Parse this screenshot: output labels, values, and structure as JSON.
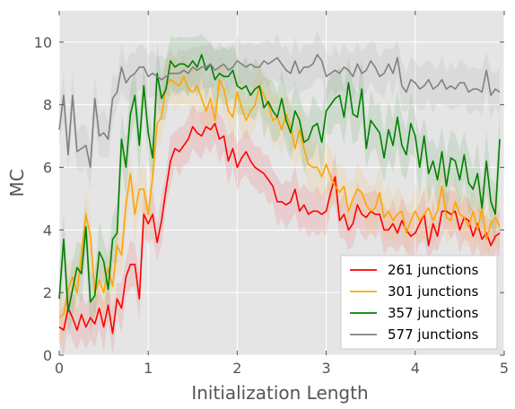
{
  "chart_data": {
    "type": "line",
    "xlabel": "Initialization Length",
    "ylabel": "MC",
    "xlim": [
      0,
      5
    ],
    "ylim": [
      0,
      11
    ],
    "xticks": [
      0,
      1,
      2,
      3,
      4,
      5
    ],
    "yticks": [
      0,
      2,
      4,
      6,
      8,
      10
    ],
    "grid": true,
    "legend_position": "bottom-right",
    "x": [
      0.0,
      0.05,
      0.1,
      0.15,
      0.2,
      0.25,
      0.3,
      0.35,
      0.4,
      0.45,
      0.5,
      0.55,
      0.6,
      0.65,
      0.7,
      0.75,
      0.8,
      0.85,
      0.9,
      0.95,
      1.0,
      1.05,
      1.1,
      1.15,
      1.2,
      1.25,
      1.3,
      1.35,
      1.4,
      1.45,
      1.5,
      1.55,
      1.6,
      1.65,
      1.7,
      1.75,
      1.8,
      1.85,
      1.9,
      1.95,
      2.0,
      2.05,
      2.1,
      2.15,
      2.2,
      2.25,
      2.3,
      2.35,
      2.4,
      2.45,
      2.5,
      2.55,
      2.6,
      2.65,
      2.7,
      2.75,
      2.8,
      2.85,
      2.9,
      2.95,
      3.0,
      3.05,
      3.1,
      3.15,
      3.2,
      3.25,
      3.3,
      3.35,
      3.4,
      3.45,
      3.5,
      3.55,
      3.6,
      3.65,
      3.7,
      3.75,
      3.8,
      3.85,
      3.9,
      3.95,
      4.0,
      4.05,
      4.1,
      4.15,
      4.2,
      4.25,
      4.3,
      4.35,
      4.4,
      4.45,
      4.5,
      4.55,
      4.6,
      4.65,
      4.7,
      4.75,
      4.8,
      4.85,
      4.9,
      4.95
    ],
    "series": [
      {
        "name": "261 junctions",
        "color": "#ff0000",
        "values": [
          0.9,
          0.8,
          1.5,
          1.2,
          0.8,
          1.3,
          0.9,
          1.2,
          1.0,
          1.5,
          0.9,
          1.6,
          0.7,
          1.8,
          1.5,
          2.5,
          2.9,
          2.9,
          1.8,
          4.5,
          4.2,
          4.5,
          3.6,
          4.3,
          5.3,
          6.2,
          6.6,
          6.5,
          6.7,
          6.9,
          7.3,
          7.1,
          7.0,
          7.3,
          7.2,
          7.4,
          6.9,
          7.0,
          6.2,
          6.6,
          6.0,
          6.3,
          6.5,
          6.2,
          6.0,
          5.9,
          5.8,
          5.6,
          5.4,
          4.9,
          4.9,
          4.8,
          4.9,
          5.3,
          4.6,
          4.8,
          4.5,
          4.6,
          4.6,
          4.5,
          4.6,
          5.2,
          5.7,
          4.3,
          4.5,
          4.0,
          4.2,
          4.8,
          4.5,
          4.4,
          4.6,
          4.5,
          4.5,
          4.0,
          4.0,
          4.2,
          3.9,
          4.3,
          4.0,
          3.8,
          3.9,
          4.2,
          4.5,
          3.5,
          4.2,
          3.8,
          4.6,
          4.6,
          4.5,
          4.6,
          4.0,
          4.4,
          4.3,
          3.8,
          4.2,
          3.7,
          3.9,
          3.5,
          3.8,
          3.9
        ]
      },
      {
        "name": "301 junctions",
        "color": "#ffa500",
        "values": [
          1.2,
          1.3,
          2.1,
          2.5,
          2.0,
          3.2,
          4.5,
          3.8,
          2.0,
          2.4,
          2.0,
          2.8,
          2.2,
          3.5,
          3.2,
          4.8,
          5.8,
          4.5,
          5.3,
          5.3,
          4.5,
          5.7,
          7.4,
          7.6,
          8.6,
          8.8,
          8.7,
          8.6,
          8.9,
          8.5,
          8.4,
          8.6,
          8.2,
          7.8,
          8.2,
          7.5,
          8.8,
          8.5,
          7.8,
          7.6,
          8.4,
          7.9,
          7.5,
          7.8,
          8.0,
          8.6,
          8.3,
          8.0,
          7.5,
          7.6,
          7.2,
          7.7,
          7.3,
          6.6,
          7.2,
          6.6,
          6.1,
          6.0,
          6.0,
          5.7,
          6.1,
          5.7,
          5.4,
          5.2,
          5.4,
          4.6,
          5.0,
          5.3,
          5.2,
          4.8,
          4.6,
          4.7,
          5.2,
          4.4,
          4.6,
          4.3,
          4.5,
          4.6,
          3.9,
          4.3,
          4.6,
          4.3,
          4.5,
          4.7,
          4.3,
          4.6,
          5.4,
          4.4,
          4.3,
          4.9,
          4.5,
          4.4,
          4.1,
          4.6,
          4.0,
          4.7,
          3.7,
          4.2,
          4.4,
          4.1
        ]
      },
      {
        "name": "357 junctions",
        "color": "#008000",
        "values": [
          1.8,
          3.7,
          1.4,
          2.1,
          2.8,
          2.6,
          4.1,
          1.7,
          1.9,
          3.3,
          3.0,
          2.1,
          3.7,
          3.9,
          6.9,
          6.0,
          7.7,
          8.3,
          6.7,
          8.6,
          7.1,
          6.3,
          9.0,
          8.2,
          8.5,
          9.4,
          9.2,
          9.3,
          9.3,
          9.2,
          9.4,
          9.2,
          9.6,
          9.1,
          9.3,
          8.8,
          9.0,
          8.9,
          8.9,
          9.1,
          8.6,
          8.5,
          8.6,
          8.3,
          8.5,
          8.6,
          7.9,
          8.1,
          7.8,
          7.6,
          8.2,
          7.5,
          7.1,
          7.8,
          7.5,
          6.8,
          6.9,
          7.3,
          7.4,
          6.8,
          7.8,
          8.0,
          8.2,
          8.3,
          7.6,
          8.7,
          7.7,
          7.6,
          8.5,
          6.6,
          7.5,
          7.3,
          7.1,
          6.3,
          7.2,
          6.7,
          7.6,
          6.7,
          6.4,
          7.4,
          7.0,
          6.0,
          7.0,
          5.8,
          6.2,
          5.6,
          6.5,
          5.4,
          6.3,
          6.2,
          5.6,
          6.4,
          5.5,
          5.3,
          5.8,
          4.7,
          6.2,
          4.9,
          4.5,
          6.9
        ]
      },
      {
        "name": "577 junctions",
        "color": "#808080",
        "values": [
          7.2,
          8.3,
          6.4,
          8.3,
          6.5,
          6.6,
          6.7,
          6.0,
          8.2,
          7.0,
          7.1,
          6.9,
          8.2,
          8.4,
          9.2,
          8.7,
          8.9,
          9.0,
          9.2,
          9.2,
          8.9,
          9.0,
          8.9,
          8.8,
          8.9,
          9.0,
          9.0,
          9.0,
          9.1,
          9.0,
          9.2,
          9.1,
          9.2,
          9.2,
          9.3,
          9.1,
          9.2,
          9.3,
          9.1,
          9.2,
          9.4,
          9.3,
          9.2,
          9.3,
          9.2,
          9.2,
          9.4,
          9.3,
          9.4,
          9.5,
          9.3,
          9.1,
          9.0,
          9.4,
          9.0,
          9.2,
          9.2,
          9.3,
          9.6,
          9.4,
          8.9,
          9.0,
          9.1,
          9.0,
          9.2,
          9.1,
          8.9,
          9.3,
          9.0,
          9.1,
          9.4,
          9.2,
          8.9,
          9.0,
          9.3,
          9.0,
          9.5,
          8.6,
          8.4,
          8.8,
          8.7,
          8.5,
          8.6,
          8.8,
          8.5,
          8.6,
          8.8,
          8.5,
          8.6,
          8.5,
          8.7,
          8.7,
          8.4,
          8.5,
          8.5,
          8.4,
          9.1,
          8.3,
          8.5,
          8.4
        ]
      }
    ]
  }
}
